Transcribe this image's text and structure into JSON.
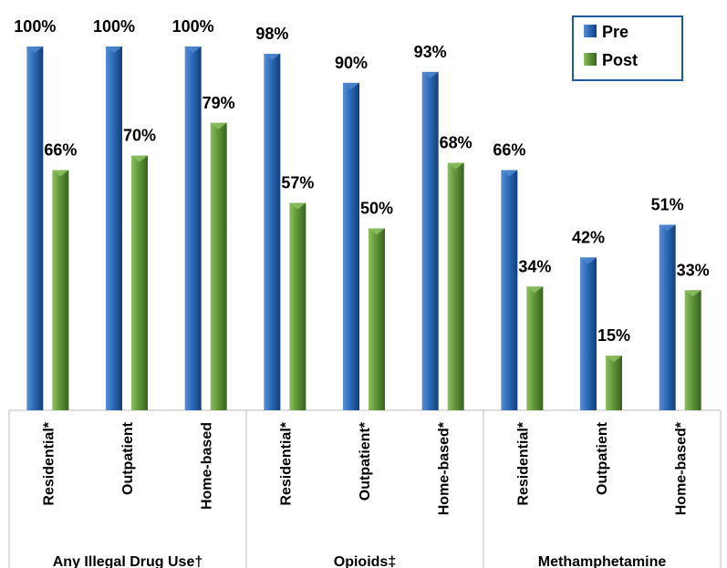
{
  "chart_data": {
    "type": "bar",
    "ylim": [
      0,
      100
    ],
    "grid": false,
    "legend_position": "top-right",
    "value_suffix": "%",
    "groups": [
      {
        "label": "Any Illegal Drug Use†",
        "categories": [
          "Residential*",
          "Outpatient",
          "Home-based"
        ]
      },
      {
        "label": "Opioids‡",
        "categories": [
          "Residential*",
          "Outpatient*",
          "Home-based*"
        ]
      },
      {
        "label": "Methamphetamine",
        "categories": [
          "Residential*",
          "Outpatient",
          "Home-based*"
        ]
      }
    ],
    "categories": [
      "Residential*",
      "Outpatient",
      "Home-based",
      "Residential*",
      "Outpatient*",
      "Home-based*",
      "Residential*",
      "Outpatient",
      "Home-based*"
    ],
    "series": [
      {
        "name": "Pre",
        "color": "#1f5aa0",
        "values": [
          100,
          100,
          100,
          98,
          90,
          93,
          66,
          42,
          51
        ]
      },
      {
        "name": "Post",
        "color": "#5a8a32",
        "values": [
          66,
          70,
          79,
          57,
          50,
          68,
          34,
          15,
          33
        ]
      }
    ]
  }
}
